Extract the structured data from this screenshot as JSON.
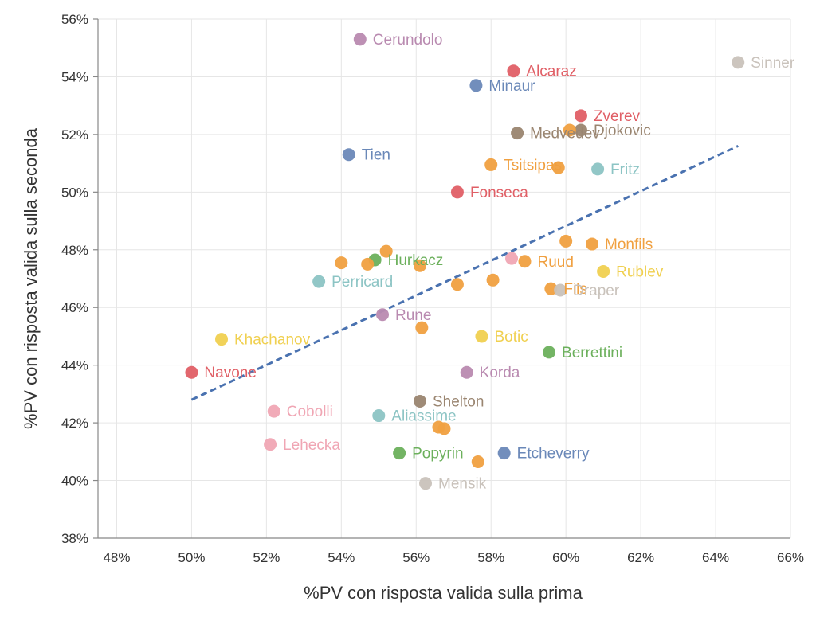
{
  "chart_data": {
    "type": "scatter",
    "xlabel": "%PV con risposta valida sulla prima",
    "ylabel": "%PV con risposta valida sulla seconda",
    "xlim": [
      47.5,
      66
    ],
    "ylim": [
      38,
      56
    ],
    "x_ticks": [
      "48%",
      "50%",
      "52%",
      "54%",
      "56%",
      "58%",
      "60%",
      "62%",
      "64%",
      "66%"
    ],
    "y_ticks": [
      "38%",
      "40%",
      "42%",
      "44%",
      "46%",
      "48%",
      "50%",
      "52%",
      "54%",
      "56%"
    ],
    "grid": true,
    "colors": {
      "red": "#e05f66",
      "orange": "#f0a040",
      "blue": "#6a88b8",
      "brown": "#9a8570",
      "teal": "#8cc4c4",
      "green": "#6cb05c",
      "pink": "#f0a6b4",
      "purple": "#b98ab0",
      "yellow": "#f0d050",
      "gray": "#c9c2bb",
      "trend": "#4a72b0"
    },
    "points": [
      {
        "label": "Cerundolo",
        "x": 54.5,
        "y": 55.3,
        "color": "purple"
      },
      {
        "label": "Alcaraz",
        "x": 58.6,
        "y": 54.2,
        "color": "red"
      },
      {
        "label": "Sinner",
        "x": 64.6,
        "y": 54.5,
        "color": "gray"
      },
      {
        "label": "Minaur",
        "x": 57.6,
        "y": 53.7,
        "color": "blue"
      },
      {
        "label": "Zverev",
        "x": 60.4,
        "y": 52.65,
        "color": "red"
      },
      {
        "label": "Medvedev",
        "x": 58.7,
        "y": 52.05,
        "color": "brown"
      },
      {
        "label": "Djokovic",
        "x": 60.4,
        "y": 52.15,
        "color": "brown"
      },
      {
        "label": "",
        "x": 60.1,
        "y": 52.15,
        "color": "orange"
      },
      {
        "label": "Tien",
        "x": 54.2,
        "y": 51.3,
        "color": "blue"
      },
      {
        "label": "Tsitsipas",
        "x": 58.0,
        "y": 50.95,
        "color": "orange"
      },
      {
        "label": "",
        "x": 59.8,
        "y": 50.85,
        "color": "orange"
      },
      {
        "label": "Fritz",
        "x": 60.85,
        "y": 50.8,
        "color": "teal"
      },
      {
        "label": "Fonseca",
        "x": 57.1,
        "y": 50.0,
        "color": "red"
      },
      {
        "label": "Monfils",
        "x": 60.7,
        "y": 48.2,
        "color": "orange"
      },
      {
        "label": "",
        "x": 60.0,
        "y": 48.3,
        "color": "orange"
      },
      {
        "label": "",
        "x": 55.2,
        "y": 47.95,
        "color": "orange"
      },
      {
        "label": "Hurkacz",
        "x": 54.9,
        "y": 47.65,
        "color": "green"
      },
      {
        "label": "",
        "x": 54.7,
        "y": 47.5,
        "color": "orange"
      },
      {
        "label": "",
        "x": 54.0,
        "y": 47.55,
        "color": "orange"
      },
      {
        "label": "",
        "x": 56.1,
        "y": 47.45,
        "color": "orange"
      },
      {
        "label": "Ruud",
        "x": 58.9,
        "y": 47.6,
        "color": "orange"
      },
      {
        "label": "",
        "x": 58.55,
        "y": 47.7,
        "color": "pink"
      },
      {
        "label": "Rublev",
        "x": 61.0,
        "y": 47.25,
        "color": "yellow"
      },
      {
        "label": "Perricard",
        "x": 53.4,
        "y": 46.9,
        "color": "teal"
      },
      {
        "label": "",
        "x": 57.1,
        "y": 46.8,
        "color": "orange"
      },
      {
        "label": "",
        "x": 58.05,
        "y": 46.95,
        "color": "orange"
      },
      {
        "label": "Fils",
        "x": 59.6,
        "y": 46.65,
        "color": "orange"
      },
      {
        "label": "Draper",
        "x": 59.85,
        "y": 46.6,
        "color": "gray"
      },
      {
        "label": "Rune",
        "x": 55.1,
        "y": 45.75,
        "color": "purple"
      },
      {
        "label": "",
        "x": 56.15,
        "y": 45.3,
        "color": "orange"
      },
      {
        "label": "Khachanov",
        "x": 50.8,
        "y": 44.9,
        "color": "yellow"
      },
      {
        "label": "Botic",
        "x": 57.75,
        "y": 45.0,
        "color": "yellow"
      },
      {
        "label": "Berrettini",
        "x": 59.55,
        "y": 44.45,
        "color": "green"
      },
      {
        "label": "Navone",
        "x": 50.0,
        "y": 43.75,
        "color": "red"
      },
      {
        "label": "Korda",
        "x": 57.35,
        "y": 43.75,
        "color": "purple"
      },
      {
        "label": "Shelton",
        "x": 56.1,
        "y": 42.75,
        "color": "brown"
      },
      {
        "label": "Cobolli",
        "x": 52.2,
        "y": 42.4,
        "color": "pink"
      },
      {
        "label": "Aliassime",
        "x": 55.0,
        "y": 42.25,
        "color": "teal"
      },
      {
        "label": "",
        "x": 56.6,
        "y": 41.85,
        "color": "orange"
      },
      {
        "label": "",
        "x": 56.75,
        "y": 41.8,
        "color": "orange"
      },
      {
        "label": "Lehecka",
        "x": 52.1,
        "y": 41.25,
        "color": "pink"
      },
      {
        "label": "Popyrin",
        "x": 55.55,
        "y": 40.95,
        "color": "green"
      },
      {
        "label": "Etcheverry",
        "x": 58.35,
        "y": 40.95,
        "color": "blue"
      },
      {
        "label": "",
        "x": 57.65,
        "y": 40.65,
        "color": "orange"
      },
      {
        "label": "Mensik",
        "x": 56.25,
        "y": 39.9,
        "color": "gray"
      }
    ],
    "trend_line": {
      "style": "dashed",
      "x": [
        50.0,
        64.6
      ],
      "y": [
        42.8,
        51.6
      ]
    }
  }
}
